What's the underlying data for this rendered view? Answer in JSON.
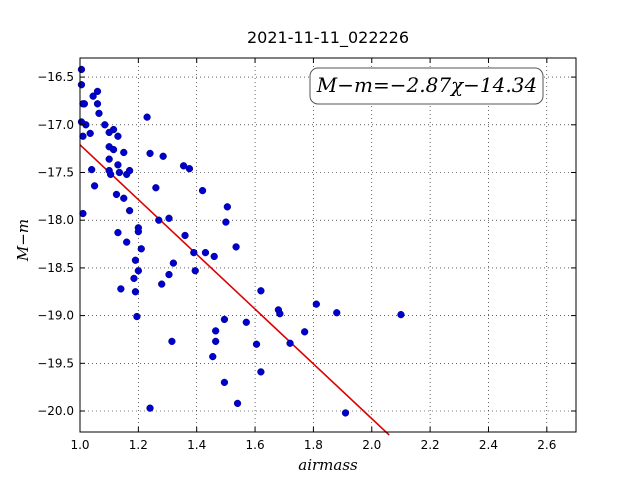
{
  "chart_data": {
    "type": "scatter",
    "title": "2021-11-11_022226",
    "xlabel": "airmass",
    "ylabel": "M−m",
    "xlim": [
      1.0,
      2.7
    ],
    "ylim": [
      -20.22,
      -16.3
    ],
    "y_inverted": true,
    "grid": true,
    "x_ticks": [
      1.0,
      1.2,
      1.4,
      1.6,
      1.8,
      2.0,
      2.2,
      2.4,
      2.6
    ],
    "x_tick_labels": [
      "1.0",
      "1.2",
      "1.4",
      "1.6",
      "1.8",
      "2.0",
      "2.2",
      "2.4",
      "2.6"
    ],
    "y_ticks": [
      -16.5,
      -17.0,
      -17.5,
      -18.0,
      -18.5,
      -19.0,
      -19.5,
      -20.0
    ],
    "y_tick_labels": [
      "−16.5",
      "−17.0",
      "−17.5",
      "−18.0",
      "−18.5",
      "−19.0",
      "−19.5",
      "−20.0"
    ],
    "annotation": "M−m=−2.87χ−14.34",
    "annotation_position": "top-right",
    "marker_color": "#0000cc",
    "fit_line_color": "#dd0000",
    "fit": {
      "slope": -2.87,
      "intercept": -14.34,
      "x_range": [
        1.0,
        2.06
      ]
    },
    "points": [
      [
        1.005,
        -16.42
      ],
      [
        1.005,
        -16.58
      ],
      [
        1.01,
        -16.78
      ],
      [
        1.015,
        -16.78
      ],
      [
        1.005,
        -16.97
      ],
      [
        1.01,
        -17.12
      ],
      [
        1.02,
        -17.0
      ],
      [
        1.035,
        -17.09
      ],
      [
        1.045,
        -16.7
      ],
      [
        1.06,
        -16.65
      ],
      [
        1.06,
        -16.78
      ],
      [
        1.065,
        -16.88
      ],
      [
        1.085,
        -17.0
      ],
      [
        1.1,
        -17.08
      ],
      [
        1.115,
        -17.05
      ],
      [
        1.13,
        -17.12
      ],
      [
        1.1,
        -17.23
      ],
      [
        1.115,
        -17.26
      ],
      [
        1.1,
        -17.36
      ],
      [
        1.1,
        -17.48
      ],
      [
        1.105,
        -17.52
      ],
      [
        1.13,
        -17.42
      ],
      [
        1.135,
        -17.5
      ],
      [
        1.15,
        -17.29
      ],
      [
        1.16,
        -17.52
      ],
      [
        1.17,
        -17.48
      ],
      [
        1.04,
        -17.47
      ],
      [
        1.05,
        -17.64
      ],
      [
        1.125,
        -17.73
      ],
      [
        1.15,
        -17.77
      ],
      [
        1.17,
        -17.9
      ],
      [
        1.01,
        -17.93
      ],
      [
        1.23,
        -16.92
      ],
      [
        1.24,
        -17.3
      ],
      [
        1.285,
        -17.33
      ],
      [
        1.26,
        -17.66
      ],
      [
        1.27,
        -18.0
      ],
      [
        1.305,
        -17.98
      ],
      [
        1.355,
        -17.43
      ],
      [
        1.375,
        -17.46
      ],
      [
        1.42,
        -17.69
      ],
      [
        1.505,
        -17.86
      ],
      [
        1.13,
        -18.13
      ],
      [
        1.16,
        -18.23
      ],
      [
        1.2,
        -18.08
      ],
      [
        1.2,
        -18.12
      ],
      [
        1.21,
        -18.3
      ],
      [
        1.19,
        -18.42
      ],
      [
        1.2,
        -18.53
      ],
      [
        1.185,
        -18.61
      ],
      [
        1.14,
        -18.72
      ],
      [
        1.19,
        -18.75
      ],
      [
        1.195,
        -19.01
      ],
      [
        1.36,
        -18.16
      ],
      [
        1.32,
        -18.45
      ],
      [
        1.305,
        -18.57
      ],
      [
        1.28,
        -18.67
      ],
      [
        1.39,
        -18.34
      ],
      [
        1.43,
        -18.34
      ],
      [
        1.395,
        -18.53
      ],
      [
        1.46,
        -18.38
      ],
      [
        1.5,
        -18.02
      ],
      [
        1.535,
        -18.28
      ],
      [
        1.315,
        -19.27
      ],
      [
        1.495,
        -19.04
      ],
      [
        1.465,
        -19.16
      ],
      [
        1.465,
        -19.27
      ],
      [
        1.455,
        -19.43
      ],
      [
        1.495,
        -19.7
      ],
      [
        1.24,
        -19.97
      ],
      [
        1.54,
        -19.92
      ],
      [
        1.57,
        -19.07
      ],
      [
        1.605,
        -19.3
      ],
      [
        1.62,
        -18.74
      ],
      [
        1.62,
        -19.59
      ],
      [
        1.68,
        -18.94
      ],
      [
        1.685,
        -18.98
      ],
      [
        1.72,
        -19.29
      ],
      [
        1.77,
        -19.17
      ],
      [
        1.81,
        -18.88
      ],
      [
        1.88,
        -18.97
      ],
      [
        1.91,
        -20.02
      ],
      [
        2.1,
        -18.99
      ]
    ]
  }
}
